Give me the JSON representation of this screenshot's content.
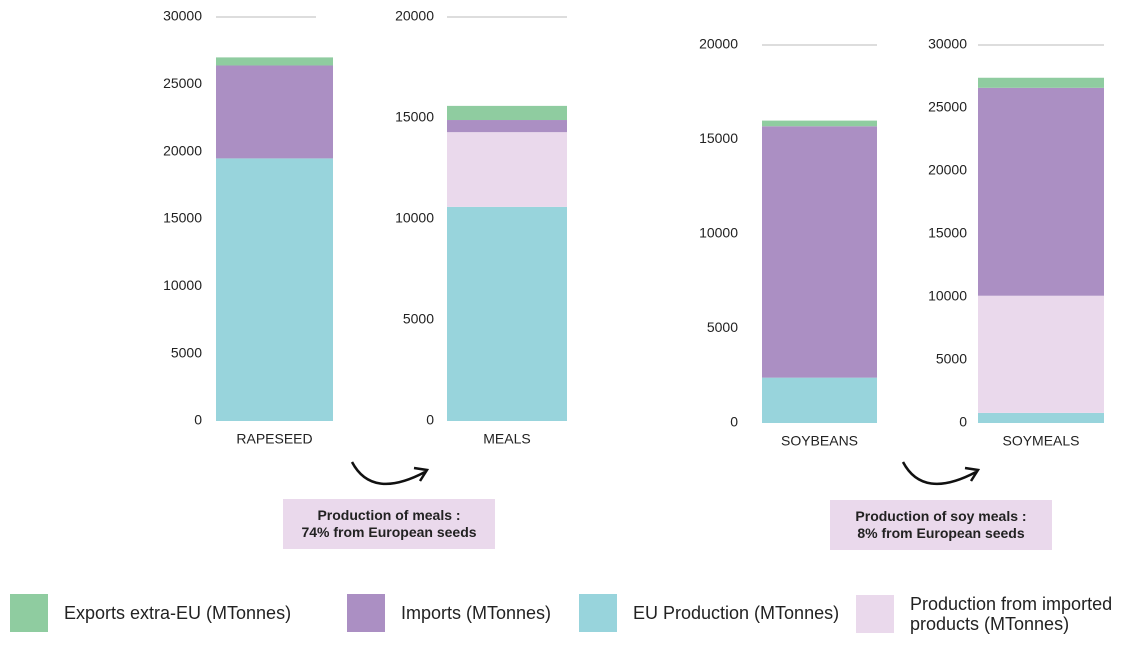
{
  "chart_data": [
    {
      "type": "bar",
      "categories": [
        "RAPESEED"
      ],
      "ylim": [
        0,
        30000
      ],
      "yticks": [
        0,
        5000,
        10000,
        15000,
        20000,
        25000,
        30000
      ],
      "series": [
        {
          "color": "#98d4dc",
          "values": [
            19500
          ]
        },
        {
          "color": "#ab8fc3",
          "values": [
            6900
          ]
        },
        {
          "color": "#8fcca0",
          "values": [
            600
          ]
        }
      ]
    },
    {
      "type": "bar",
      "categories": [
        "MEALS"
      ],
      "ylim": [
        0,
        20000
      ],
      "yticks": [
        0,
        5000,
        10000,
        15000,
        20000
      ],
      "series": [
        {
          "color": "#98d4dc",
          "values": [
            10600
          ]
        },
        {
          "color": "#ead9ec",
          "values": [
            3700
          ]
        },
        {
          "color": "#ab8fc3",
          "values": [
            600
          ]
        },
        {
          "color": "#8fcca0",
          "values": [
            700
          ]
        }
      ]
    },
    {
      "type": "bar",
      "categories": [
        "SOYBEANS"
      ],
      "ylim": [
        0,
        20000
      ],
      "yticks": [
        0,
        5000,
        10000,
        15000,
        20000
      ],
      "series": [
        {
          "color": "#98d4dc",
          "values": [
            2400
          ]
        },
        {
          "color": "#ab8fc3",
          "values": [
            13300
          ]
        },
        {
          "color": "#8fcca0",
          "values": [
            300
          ]
        }
      ]
    },
    {
      "type": "bar",
      "categories": [
        "SOYMEALS"
      ],
      "ylim": [
        0,
        30000
      ],
      "yticks": [
        0,
        5000,
        10000,
        15000,
        20000,
        25000,
        30000
      ],
      "series": [
        {
          "name": "EU Production (MTonnes)",
          "color": "#98d4dc",
          "values": [
            800
          ]
        },
        {
          "name": "Production from imported products (MTonnes)",
          "color": "#ead9ec",
          "values": [
            9300
          ]
        },
        {
          "name": "Imports (MTonnes)",
          "color": "#ab8fc3",
          "values": [
            16500
          ]
        },
        {
          "name": "Exports  extra-EU (MTonnes)",
          "color": "#8fcca0",
          "values": [
            800
          ]
        }
      ]
    }
  ],
  "annotations": [
    {
      "lines": [
        "Production of meals :",
        "74% from European seeds"
      ]
    },
    {
      "lines": [
        "Production of soy meals :",
        "8% from European seeds"
      ]
    }
  ]
}
